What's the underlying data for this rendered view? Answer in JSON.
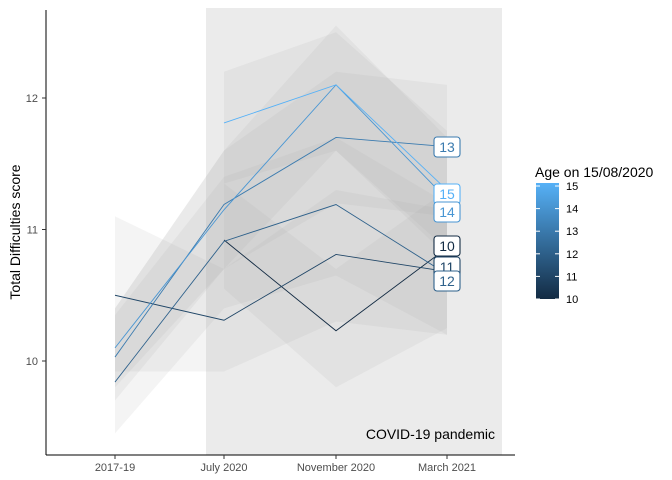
{
  "chart_data": {
    "type": "line",
    "categories": [
      "2017-19",
      "July 2020",
      "November 2020",
      "March 2021"
    ],
    "ylabel": "Total Difficulties score",
    "xlabel": "",
    "ylim": [
      9.35,
      12.7
    ],
    "yticks": [
      10,
      11,
      12
    ],
    "grid": false,
    "annotation": "COVID-19 pandemic",
    "shaded_period": [
      "July 2020",
      "March 2021"
    ],
    "legend": {
      "title": "Age on 15/08/2020",
      "placement": "right",
      "range": [
        10,
        15
      ],
      "ticks": [
        10,
        11,
        12,
        13,
        14,
        15
      ],
      "color_low": "#132b43",
      "color_high": "#56b1f7"
    },
    "series": [
      {
        "name": "10",
        "values": [
          null,
          10.92,
          10.23,
          10.86
        ],
        "ci_low": [
          null,
          10.55,
          9.8,
          10.25
        ],
        "ci_high": [
          null,
          11.35,
          10.7,
          11.3
        ]
      },
      {
        "name": "11",
        "values": [
          10.5,
          10.31,
          10.81,
          10.68
        ],
        "ci_low": [
          9.92,
          9.92,
          10.3,
          10.2
        ],
        "ci_high": [
          11.1,
          10.7,
          11.3,
          11.15
        ]
      },
      {
        "name": "12",
        "values": [
          9.84,
          10.91,
          11.19,
          10.66
        ],
        "ci_low": [
          9.45,
          10.4,
          10.65,
          10.2
        ],
        "ci_high": [
          10.35,
          11.4,
          11.7,
          11.2
        ]
      },
      {
        "name": "13",
        "values": [
          10.03,
          11.19,
          11.7,
          11.63
        ],
        "ci_low": [
          9.7,
          10.7,
          11.2,
          11.1
        ],
        "ci_high": [
          10.4,
          11.6,
          12.2,
          12.1
        ]
      },
      {
        "name": "14",
        "values": [
          10.1,
          11.15,
          12.1,
          11.23
        ],
        "ci_low": [
          9.8,
          10.7,
          11.6,
          10.8
        ],
        "ci_high": [
          10.4,
          11.6,
          12.55,
          11.7
        ]
      },
      {
        "name": "15",
        "values": [
          null,
          11.81,
          12.1,
          11.3
        ],
        "ci_low": [
          null,
          11.35,
          11.6,
          10.85
        ],
        "ci_high": [
          null,
          12.2,
          12.5,
          11.75
        ]
      }
    ],
    "end_labels": [
      "13",
      "15",
      "14",
      "10",
      "11",
      "12"
    ]
  }
}
